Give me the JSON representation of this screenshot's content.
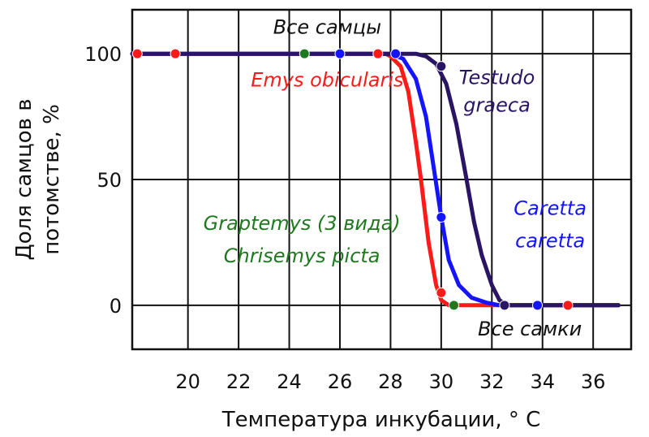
{
  "chart_data": {
    "type": "line",
    "xlabel": "Температура инкубации, ° С",
    "ylabel_lines": [
      "Доля самцов в",
      "потомстве, %"
    ],
    "xlim": [
      17.8,
      37.5
    ],
    "ylim": [
      -17.5,
      117.5
    ],
    "x_ticks": [
      20,
      22,
      24,
      26,
      28,
      30,
      32,
      34,
      36
    ],
    "y_ticks": [
      0,
      50,
      100
    ],
    "x_grid_at": [
      20,
      22,
      24,
      26,
      28,
      30,
      32,
      34,
      36
    ],
    "y_grid_at": [
      0,
      50,
      100
    ],
    "grid": true,
    "series": [
      {
        "name": "Emys obicularis",
        "color": "#ff1a1a",
        "x": [
          17.8,
          27.8,
          28.0,
          28.4,
          28.7,
          29.0,
          29.2,
          29.5,
          29.8,
          30.0,
          30.3,
          37.0
        ],
        "y": [
          100,
          100,
          99,
          95,
          85,
          65,
          50,
          25,
          8,
          2,
          0,
          0
        ],
        "markers": [
          [
            18.0,
            100
          ],
          [
            19.5,
            100
          ],
          [
            27.5,
            100
          ],
          [
            30.0,
            5
          ],
          [
            35.0,
            0
          ]
        ]
      },
      {
        "name": "Caretta caretta",
        "color": "#1414ff",
        "x": [
          17.8,
          28.0,
          28.5,
          29.0,
          29.4,
          29.7,
          30.0,
          30.3,
          30.7,
          31.2,
          31.8,
          32.3,
          37.0
        ],
        "y": [
          100,
          100,
          98,
          90,
          75,
          55,
          35,
          18,
          8,
          3,
          1,
          0,
          0
        ],
        "markers": [
          [
            26.0,
            100
          ],
          [
            28.2,
            100
          ],
          [
            30.0,
            35
          ],
          [
            33.8,
            0
          ]
        ]
      },
      {
        "name": "Testudo graeca",
        "color": "#2a1464",
        "x": [
          17.8,
          29.0,
          29.4,
          29.8,
          30.2,
          30.6,
          31.0,
          31.3,
          31.6,
          32.0,
          32.3,
          32.6,
          37.0
        ],
        "y": [
          100,
          100,
          99,
          96,
          88,
          72,
          50,
          33,
          20,
          8,
          2,
          0,
          0
        ],
        "markers": [
          [
            30.0,
            95
          ],
          [
            32.5,
            0
          ]
        ]
      },
      {
        "name": "Graptemys (3 вида) Chrisemys picta",
        "color": "#1e7a1e",
        "markers": [
          [
            24.6,
            100
          ],
          [
            30.5,
            0
          ]
        ]
      }
    ],
    "annotations": [
      {
        "text": "Все самцы",
        "color": "#111111",
        "x": 25.5,
        "y": 108
      },
      {
        "text": "Emys obicularis",
        "color": "#ff1a1a",
        "x": 25.5,
        "y": 87
      },
      {
        "text": "Testudo",
        "color": "#2a1464",
        "x": 32.2,
        "y": 88
      },
      {
        "text": "graeca",
        "color": "#2a1464",
        "x": 32.2,
        "y": 77
      },
      {
        "text": "Graptemys (3 вида)",
        "color": "#1e7a1e",
        "x": 24.5,
        "y": 30
      },
      {
        "text": "Chrisemys picta",
        "color": "#1e7a1e",
        "x": 24.5,
        "y": 17
      },
      {
        "text": "Caretta",
        "color": "#1414ff",
        "x": 34.3,
        "y": 36
      },
      {
        "text": "caretta",
        "color": "#1414ff",
        "x": 34.3,
        "y": 23
      },
      {
        "text": "Все самки",
        "color": "#111111",
        "x": 33.5,
        "y": -12
      }
    ]
  }
}
